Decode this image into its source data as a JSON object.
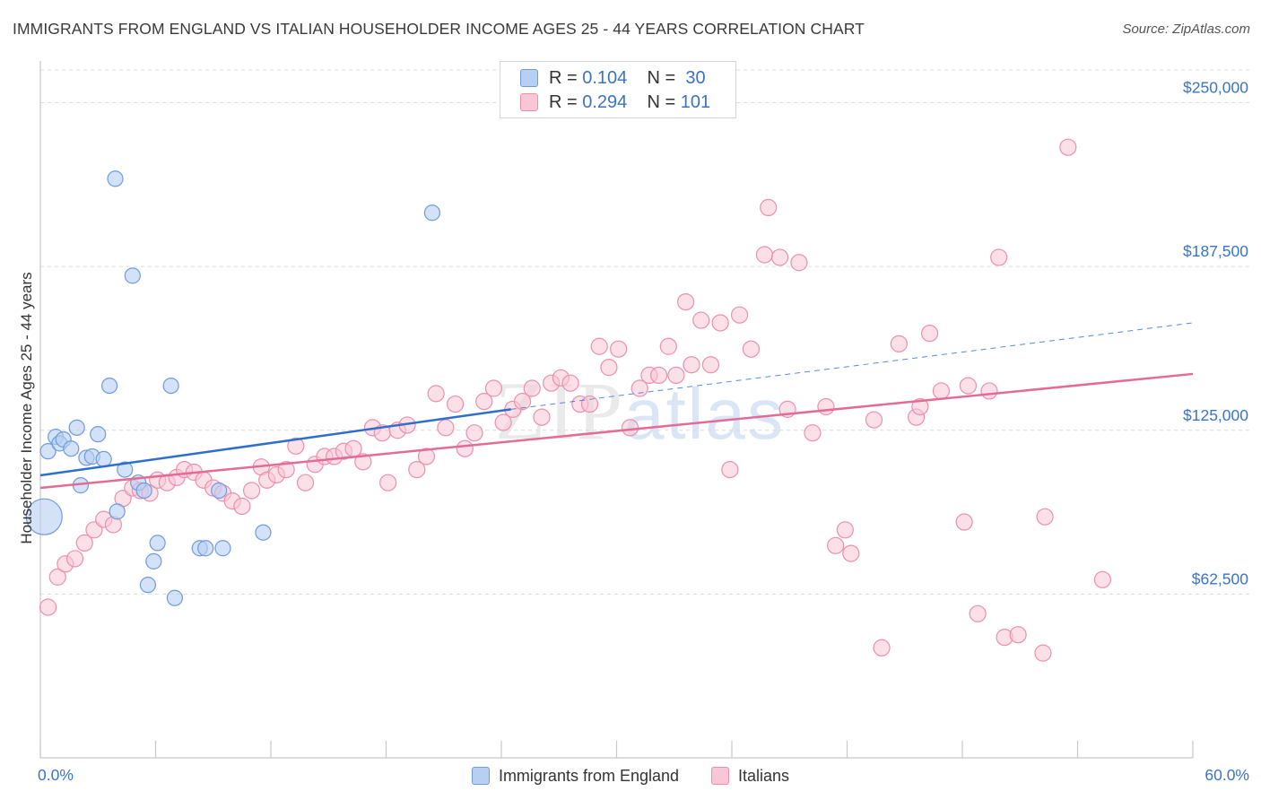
{
  "header": {
    "title": "IMMIGRANTS FROM ENGLAND VS ITALIAN HOUSEHOLDER INCOME AGES 25 - 44 YEARS CORRELATION CHART",
    "source": "Source: ZipAtlas.com"
  },
  "watermark": {
    "zip": "ZIP",
    "atlas": "atlas"
  },
  "legend": {
    "rows": [
      {
        "r_label": "R =",
        "r_value": "0.104",
        "n_label": "N =",
        "n_value": "30"
      },
      {
        "r_label": "R =",
        "r_value": "0.294",
        "n_label": "N =",
        "n_value": "101"
      }
    ]
  },
  "bottom_legend": {
    "england": "Immigrants from England",
    "italians": "Italians"
  },
  "colors": {
    "england_fill": "#b7cff2",
    "england_stroke": "#6f9bde",
    "england_line": "#2f6fcc",
    "italians_fill": "#f9c6d6",
    "italians_stroke": "#ec8fae",
    "italians_line": "#e36c96",
    "tick_text": "#3b73c5"
  },
  "chart_data": {
    "type": "scatter",
    "title": "IMMIGRANTS FROM ENGLAND VS ITALIAN HOUSEHOLDER INCOME AGES 25 - 44 YEARS CORRELATION CHART",
    "xlabel": "",
    "ylabel": "Householder Income Ages 25 - 44 years",
    "xlim": [
      0,
      60
    ],
    "ylim": [
      0,
      262500
    ],
    "x_tick_labels": [
      "0.0%",
      "60.0%"
    ],
    "y_ticks": [
      62500,
      125000,
      187500,
      250000
    ],
    "y_tick_labels": [
      "$62,500",
      "$125,000",
      "$187,500",
      "$250,000"
    ],
    "grid": "horizontal dashed",
    "legend_position": "top-center",
    "series": [
      {
        "name": "Immigrants from England",
        "R": 0.104,
        "N": 30,
        "trend": {
          "x": [
            0,
            24.5
          ],
          "y": [
            107800,
            133000
          ],
          "dashed_to": [
            60,
            166000
          ]
        },
        "points": [
          {
            "x": 0.2,
            "y": 92000,
            "size": "large"
          },
          {
            "x": 0.4,
            "y": 117000
          },
          {
            "x": 0.8,
            "y": 122500
          },
          {
            "x": 1.0,
            "y": 120000
          },
          {
            "x": 1.2,
            "y": 121500
          },
          {
            "x": 1.6,
            "y": 118000
          },
          {
            "x": 1.9,
            "y": 126000
          },
          {
            "x": 2.1,
            "y": 104000
          },
          {
            "x": 2.4,
            "y": 114500
          },
          {
            "x": 2.7,
            "y": 115000
          },
          {
            "x": 3.0,
            "y": 123500
          },
          {
            "x": 3.3,
            "y": 114000
          },
          {
            "x": 3.6,
            "y": 142000
          },
          {
            "x": 3.9,
            "y": 221000
          },
          {
            "x": 4.0,
            "y": 94000
          },
          {
            "x": 4.4,
            "y": 110000
          },
          {
            "x": 4.8,
            "y": 184000
          },
          {
            "x": 5.1,
            "y": 105000
          },
          {
            "x": 5.4,
            "y": 102000
          },
          {
            "x": 5.6,
            "y": 66000
          },
          {
            "x": 5.9,
            "y": 75000
          },
          {
            "x": 6.1,
            "y": 82000
          },
          {
            "x": 6.8,
            "y": 142000
          },
          {
            "x": 7.0,
            "y": 61000
          },
          {
            "x": 8.3,
            "y": 80000
          },
          {
            "x": 8.6,
            "y": 80000
          },
          {
            "x": 9.3,
            "y": 102000
          },
          {
            "x": 9.5,
            "y": 80000
          },
          {
            "x": 11.6,
            "y": 86000
          },
          {
            "x": 20.4,
            "y": 208000
          }
        ]
      },
      {
        "name": "Italians",
        "R": 0.294,
        "N": 101,
        "trend": {
          "x": [
            0,
            60
          ],
          "y": [
            103000,
            146500
          ]
        },
        "points": [
          {
            "x": 0.4,
            "y": 57500
          },
          {
            "x": 0.9,
            "y": 69000
          },
          {
            "x": 1.3,
            "y": 74000
          },
          {
            "x": 1.8,
            "y": 76000
          },
          {
            "x": 2.3,
            "y": 82000
          },
          {
            "x": 2.8,
            "y": 87000
          },
          {
            "x": 3.3,
            "y": 91000
          },
          {
            "x": 3.8,
            "y": 89000
          },
          {
            "x": 4.3,
            "y": 99000
          },
          {
            "x": 4.8,
            "y": 103000
          },
          {
            "x": 5.2,
            "y": 102000
          },
          {
            "x": 5.7,
            "y": 101000
          },
          {
            "x": 6.1,
            "y": 106000
          },
          {
            "x": 6.6,
            "y": 105000
          },
          {
            "x": 7.1,
            "y": 107000
          },
          {
            "x": 7.5,
            "y": 110000
          },
          {
            "x": 8.0,
            "y": 109000
          },
          {
            "x": 8.5,
            "y": 106000
          },
          {
            "x": 9.0,
            "y": 103000
          },
          {
            "x": 9.5,
            "y": 101000
          },
          {
            "x": 10.0,
            "y": 98000
          },
          {
            "x": 10.5,
            "y": 96000
          },
          {
            "x": 11.0,
            "y": 102000
          },
          {
            "x": 11.5,
            "y": 111000
          },
          {
            "x": 11.8,
            "y": 106000
          },
          {
            "x": 12.3,
            "y": 108000
          },
          {
            "x": 12.8,
            "y": 110000
          },
          {
            "x": 13.3,
            "y": 119000
          },
          {
            "x": 13.8,
            "y": 105000
          },
          {
            "x": 14.3,
            "y": 112000
          },
          {
            "x": 14.8,
            "y": 115000
          },
          {
            "x": 15.3,
            "y": 115000
          },
          {
            "x": 15.8,
            "y": 117000
          },
          {
            "x": 16.3,
            "y": 118000
          },
          {
            "x": 16.8,
            "y": 113000
          },
          {
            "x": 17.3,
            "y": 126000
          },
          {
            "x": 17.8,
            "y": 124000
          },
          {
            "x": 18.1,
            "y": 105000
          },
          {
            "x": 18.6,
            "y": 125000
          },
          {
            "x": 19.1,
            "y": 127000
          },
          {
            "x": 19.6,
            "y": 110000
          },
          {
            "x": 20.1,
            "y": 115000
          },
          {
            "x": 20.6,
            "y": 139000
          },
          {
            "x": 21.1,
            "y": 126000
          },
          {
            "x": 21.6,
            "y": 135000
          },
          {
            "x": 22.1,
            "y": 118000
          },
          {
            "x": 22.6,
            "y": 124000
          },
          {
            "x": 23.1,
            "y": 136000
          },
          {
            "x": 23.6,
            "y": 141000
          },
          {
            "x": 24.1,
            "y": 128000
          },
          {
            "x": 24.6,
            "y": 133000
          },
          {
            "x": 25.1,
            "y": 136000
          },
          {
            "x": 25.6,
            "y": 141000
          },
          {
            "x": 26.1,
            "y": 130000
          },
          {
            "x": 26.6,
            "y": 143000
          },
          {
            "x": 27.1,
            "y": 145000
          },
          {
            "x": 27.6,
            "y": 143000
          },
          {
            "x": 28.1,
            "y": 135000
          },
          {
            "x": 28.6,
            "y": 135000
          },
          {
            "x": 29.1,
            "y": 157000
          },
          {
            "x": 29.6,
            "y": 149000
          },
          {
            "x": 30.1,
            "y": 156000
          },
          {
            "x": 30.7,
            "y": 126000
          },
          {
            "x": 31.2,
            "y": 141000
          },
          {
            "x": 31.7,
            "y": 146000
          },
          {
            "x": 32.2,
            "y": 146000
          },
          {
            "x": 32.7,
            "y": 157000
          },
          {
            "x": 33.1,
            "y": 146000
          },
          {
            "x": 33.6,
            "y": 174000
          },
          {
            "x": 33.9,
            "y": 150000
          },
          {
            "x": 34.4,
            "y": 167000
          },
          {
            "x": 34.9,
            "y": 150000
          },
          {
            "x": 35.4,
            "y": 166000
          },
          {
            "x": 35.9,
            "y": 110000
          },
          {
            "x": 36.4,
            "y": 169000
          },
          {
            "x": 37.0,
            "y": 156000
          },
          {
            "x": 37.7,
            "y": 192000
          },
          {
            "x": 37.9,
            "y": 210000
          },
          {
            "x": 38.5,
            "y": 191000
          },
          {
            "x": 38.9,
            "y": 133000
          },
          {
            "x": 39.5,
            "y": 189000
          },
          {
            "x": 40.2,
            "y": 124000
          },
          {
            "x": 40.9,
            "y": 134000
          },
          {
            "x": 41.4,
            "y": 81000
          },
          {
            "x": 41.9,
            "y": 87000
          },
          {
            "x": 42.2,
            "y": 78000
          },
          {
            "x": 43.4,
            "y": 129000
          },
          {
            "x": 43.8,
            "y": 42000
          },
          {
            "x": 44.7,
            "y": 158000
          },
          {
            "x": 45.6,
            "y": 130000
          },
          {
            "x": 45.8,
            "y": 134000
          },
          {
            "x": 46.3,
            "y": 162000
          },
          {
            "x": 46.9,
            "y": 140000
          },
          {
            "x": 48.1,
            "y": 90000
          },
          {
            "x": 48.3,
            "y": 142000
          },
          {
            "x": 48.8,
            "y": 55000
          },
          {
            "x": 49.4,
            "y": 140000
          },
          {
            "x": 49.9,
            "y": 191000
          },
          {
            "x": 50.2,
            "y": 46000
          },
          {
            "x": 50.9,
            "y": 47000
          },
          {
            "x": 52.2,
            "y": 40000
          },
          {
            "x": 52.3,
            "y": 92000
          },
          {
            "x": 53.5,
            "y": 233000
          },
          {
            "x": 55.3,
            "y": 68000
          }
        ]
      }
    ]
  }
}
